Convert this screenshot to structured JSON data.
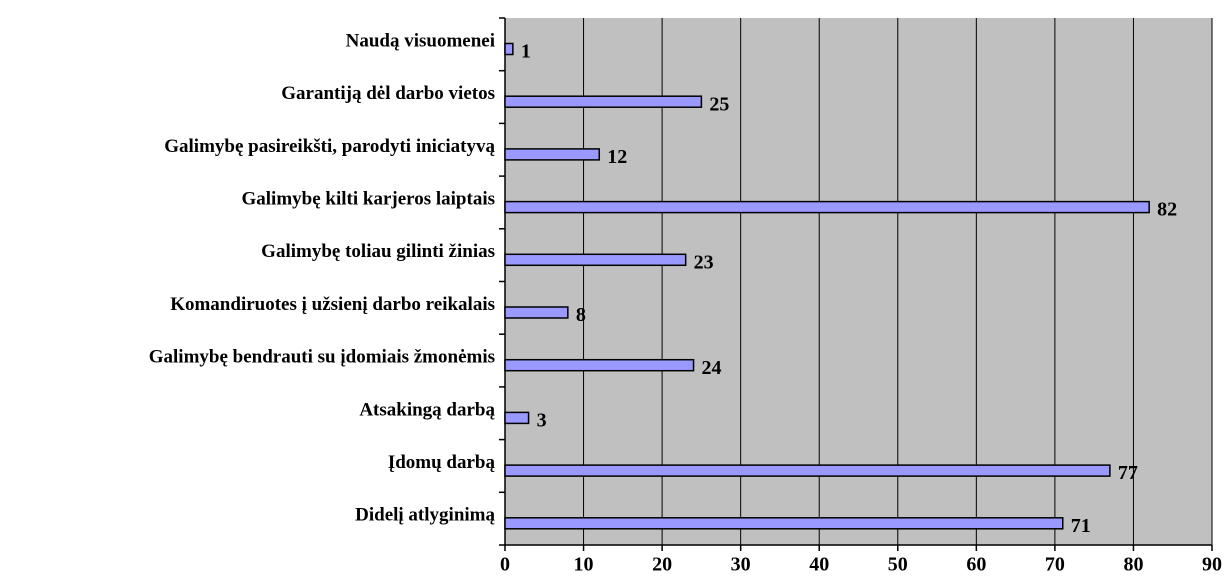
{
  "chart_data": {
    "type": "barh",
    "categories": [
      "Naudą visuomenei",
      "Garantiją dėl darbo vietos",
      "Galimybę pasireikšti, parodyti iniciatyvą",
      "Galimybę kilti karjeros laiptais",
      "Galimybę toliau gilinti žinias",
      "Komandiruotes į užsienį darbo reikalais",
      "Galimybę bendrauti su įdomiais žmonėmis",
      "Atsakingą darbą",
      "Įdomų darbą",
      "Didelį atlyginimą"
    ],
    "values": [
      1,
      25,
      12,
      82,
      23,
      8,
      24,
      3,
      77,
      71
    ],
    "color": "#9999ff",
    "xlim": [
      0,
      90
    ],
    "xticks": [
      0,
      10,
      20,
      30,
      40,
      50,
      60,
      70,
      80,
      90
    ],
    "grid": true
  }
}
